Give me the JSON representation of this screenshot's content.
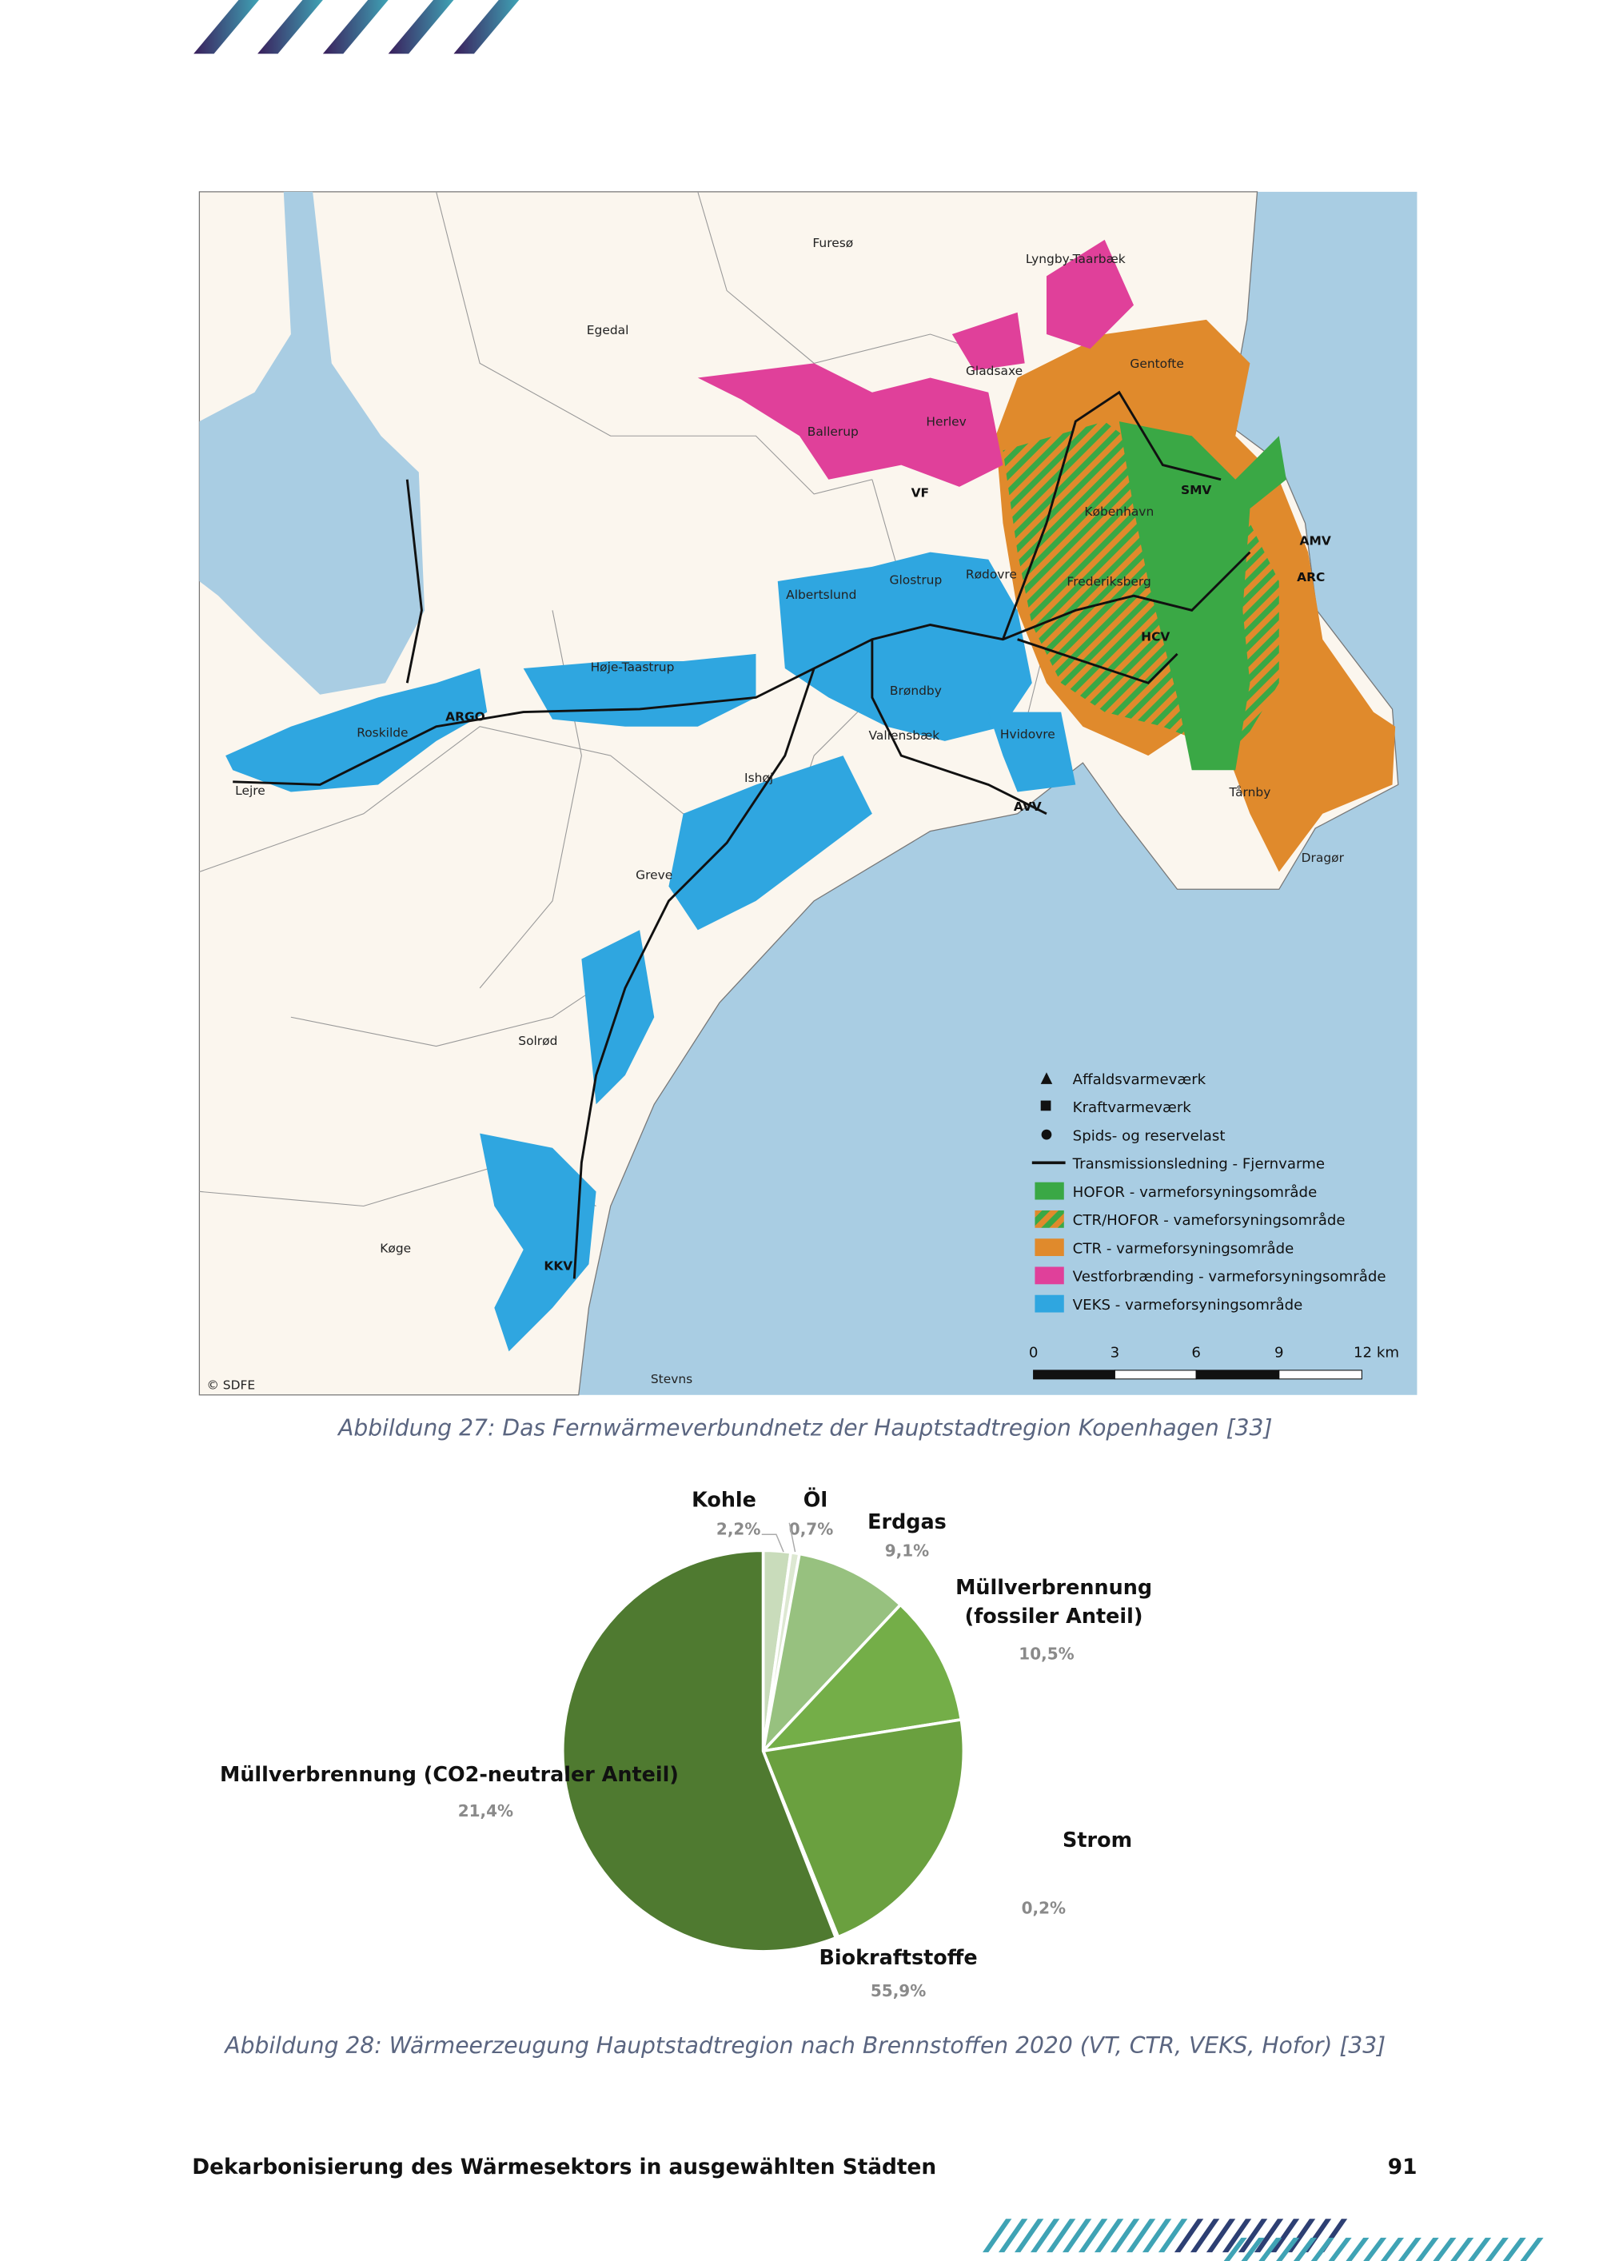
{
  "map": {
    "places": [
      "Furesø",
      "Egedal",
      "Lyngby-Taarbæk",
      "Gladsaxe",
      "Gentofte",
      "Ballerup",
      "Herlev",
      "København",
      "Frederiksberg",
      "Albertslund",
      "Glostrup",
      "Rødovre",
      "Høje-Taastrup",
      "Brøndby",
      "Roskilde",
      "Vallensbæk",
      "Hvidovre",
      "Lejre",
      "Ishøj",
      "Tårnby",
      "Dragør",
      "Greve",
      "Solrød",
      "Køge",
      "Stevns"
    ],
    "plants": [
      "SMV",
      "AMV",
      "ARC",
      "VF",
      "HCV",
      "ARGO",
      "AVV",
      "KKV"
    ],
    "legend": [
      "Affaldsvarmeværk",
      "Kraftvarmeværk",
      "Spids- og reservelast",
      "Transmissionsledning - Fjernvarme",
      "HOFOR - varmeforsyningsområde",
      "CTR/HOFOR - vameforsyningsområde",
      "CTR - varmeforsyningsområde",
      "Vestforbrænding - varmeforsyningsområde",
      "VEKS - varmeforsyningsområde"
    ],
    "scale_labels": [
      "0",
      "3",
      "6",
      "9",
      "12 km"
    ],
    "credit": "© SDFE"
  },
  "figure27_caption": "Abbildung 27: Das Fernwärmeverbundnetz der Hauptstadtregion Kopenhagen [33]",
  "chart_data": {
    "type": "pie",
    "categories": [
      "Kohle",
      "Öl",
      "Erdgas",
      "Müllverbrennung (fossiler Anteil)",
      "Müllverbrennung (CO2-neutraler Anteil)",
      "Strom",
      "Biokraftstoffe"
    ],
    "values": [
      2.2,
      0.7,
      9.1,
      10.5,
      21.4,
      0.2,
      55.9
    ],
    "value_labels": [
      "2,2%",
      "0,7%",
      "9,1%",
      "10,5%",
      "21,4%",
      "0,2%",
      "55,9%"
    ],
    "colors": [
      "#c9dcbb",
      "#dde8d2",
      "#97c17f",
      "#74ae48",
      "#6aa03f",
      "#5f9138",
      "#4f7a30"
    ]
  },
  "figure28_caption": "Abbildung 28: Wärmeerzeugung Hauptstadtregion nach Brennstoffen 2020 (VT, CTR, VEKS, Hofor) [33]",
  "footer": {
    "title": "Dekarbonisierung des Wärmesektors in ausgewählten Städten",
    "page": "91"
  }
}
